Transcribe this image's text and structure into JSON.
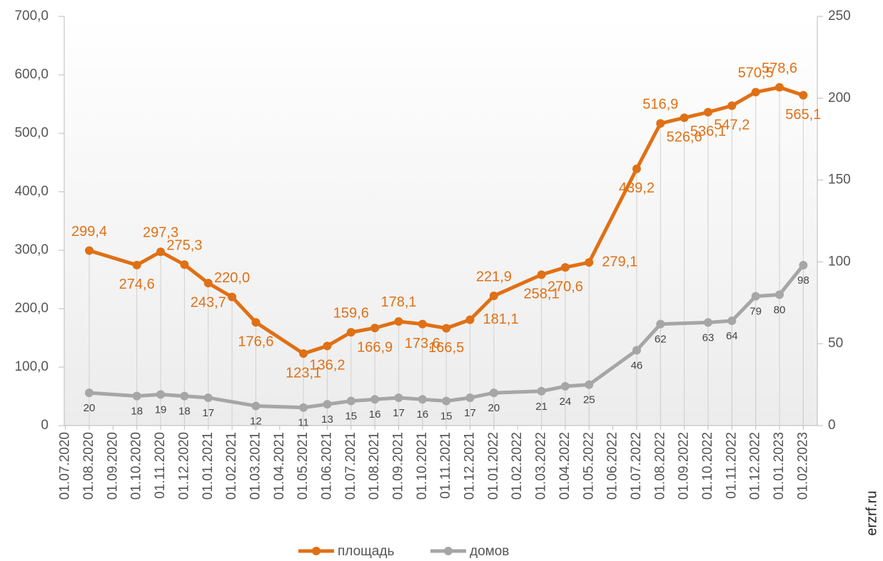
{
  "chart_data": {
    "type": "line",
    "categories": [
      "01.07.2020",
      "01.08.2020",
      "01.09.2020",
      "01.10.2020",
      "01.11.2020",
      "01.12.2020",
      "01.01.2021",
      "01.02.2021",
      "01.03.2021",
      "01.04.2021",
      "01.05.2021",
      "01.06.2021",
      "01.07.2021",
      "01.08.2021",
      "01.09.2021",
      "01.10.2021",
      "01.11.2021",
      "01.12.2021",
      "01.01.2022",
      "01.02.2022",
      "01.03.2022",
      "01.04.2022",
      "01.05.2022",
      "01.06.2022",
      "01.07.2022",
      "01.08.2022",
      "01.09.2022",
      "01.10.2022",
      "01.11.2022",
      "01.12.2022",
      "01.01.2023",
      "01.02.2023"
    ],
    "series": [
      {
        "name": "площадь",
        "color": "#e07015",
        "axis": "y",
        "x": [
          "01.08.2020",
          "01.10.2020",
          "01.11.2020",
          "01.12.2020",
          "01.01.2021",
          "01.02.2021",
          "01.03.2021",
          "01.05.2021",
          "01.06.2021",
          "01.07.2021",
          "01.08.2021",
          "01.09.2021",
          "01.10.2021",
          "01.11.2021",
          "01.12.2021",
          "01.01.2022",
          "01.03.2022",
          "01.04.2022",
          "01.05.2022",
          "01.07.2022",
          "01.08.2022",
          "01.09.2022",
          "01.10.2022",
          "01.11.2022",
          "01.12.2022",
          "01.01.2023",
          "01.02.2023"
        ],
        "values": [
          299.4,
          274.6,
          297.3,
          275.3,
          243.7,
          220.0,
          176.6,
          123.1,
          136.2,
          159.6,
          166.9,
          178.1,
          173.6,
          166.5,
          181.1,
          221.9,
          258.1,
          270.6,
          279.1,
          439.2,
          516.9,
          526.6,
          536.1,
          547.2,
          570.5,
          578.6,
          565.1
        ],
        "value_labels": [
          "299,4",
          "274,6",
          "297,3",
          "275,3",
          "243,7",
          "220,0",
          "176,6",
          "123,1",
          "136,2",
          "159,6",
          "166,9",
          "178,1",
          "173,6",
          "166,5",
          "181,1",
          "221,9",
          "258,1",
          "270,6",
          "279,1",
          "439,2",
          "516,9",
          "526,6",
          "536,1",
          "547,2",
          "570,5",
          "578,6",
          "565,1"
        ]
      },
      {
        "name": "домов",
        "color": "#a6a6a6",
        "axis": "y2",
        "x": [
          "01.08.2020",
          "01.10.2020",
          "01.11.2020",
          "01.12.2020",
          "01.01.2021",
          "01.03.2021",
          "01.05.2021",
          "01.06.2021",
          "01.07.2021",
          "01.08.2021",
          "01.09.2021",
          "01.10.2021",
          "01.11.2021",
          "01.12.2021",
          "01.01.2022",
          "01.03.2022",
          "01.04.2022",
          "01.05.2022",
          "01.07.2022",
          "01.08.2022",
          "01.10.2022",
          "01.11.2022",
          "01.12.2022",
          "01.01.2023",
          "01.02.2023"
        ],
        "values": [
          20,
          18,
          19,
          18,
          17,
          12,
          11,
          13,
          15,
          16,
          17,
          16,
          15,
          17,
          20,
          21,
          24,
          25,
          46,
          62,
          63,
          64,
          79,
          80,
          98
        ]
      }
    ],
    "ylim": [
      0,
      700
    ],
    "yticks": [
      {
        "value": 0,
        "label": "0"
      },
      {
        "value": 100,
        "label": "100,0"
      },
      {
        "value": 200,
        "label": "200,0"
      },
      {
        "value": 300,
        "label": "300,0"
      },
      {
        "value": 400,
        "label": "400,0"
      },
      {
        "value": 500,
        "label": "500,0"
      },
      {
        "value": 600,
        "label": "600,0"
      },
      {
        "value": 700,
        "label": "700,0"
      }
    ],
    "y2lim": [
      0,
      250
    ],
    "y2ticks": [
      0,
      50,
      100,
      150,
      200,
      250
    ],
    "legend": "bottom",
    "watermark": "erzrf.ru"
  }
}
